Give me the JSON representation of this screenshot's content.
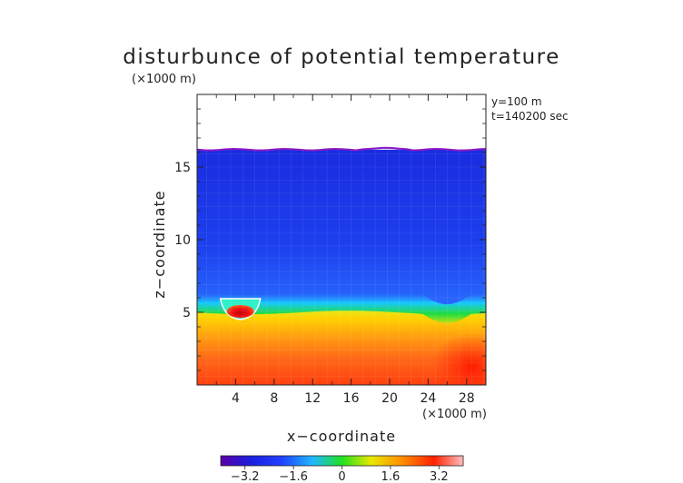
{
  "chart_data": {
    "type": "heatmap",
    "title": "disturbunce of potential temperature",
    "units_label": "(×1000 m)",
    "info_lines": [
      "y=100 m",
      "t=140200 sec"
    ],
    "xlabel": "x−coordinate",
    "xunits": "(×1000 m)",
    "ylabel": "z−coordinate",
    "xlim": [
      0,
      30
    ],
    "ylim": [
      0,
      20
    ],
    "x_ticks": [
      4,
      8,
      12,
      16,
      20,
      24,
      28
    ],
    "x_tick_labels": [
      "4",
      "8",
      "12",
      "16",
      "20",
      "24",
      "28"
    ],
    "y_ticks": [
      5,
      10,
      15
    ],
    "y_tick_labels": [
      "5",
      "10",
      "15"
    ],
    "colorbar": {
      "range": [
        -4.0,
        4.0
      ],
      "ticks": [
        -3.2,
        -1.6,
        0,
        1.6,
        3.2
      ],
      "tick_labels": [
        "−3.2",
        "−1.6",
        "0",
        "1.6",
        "3.2"
      ]
    },
    "field": {
      "top_surface_height": 16.2,
      "interface_height": 5.3,
      "upper_layer_value": -3.2,
      "lower_layer_range": [
        1.5,
        3.6
      ],
      "warm_bubble": {
        "x": 4.5,
        "z": 5.0,
        "value": 4.0
      }
    }
  }
}
